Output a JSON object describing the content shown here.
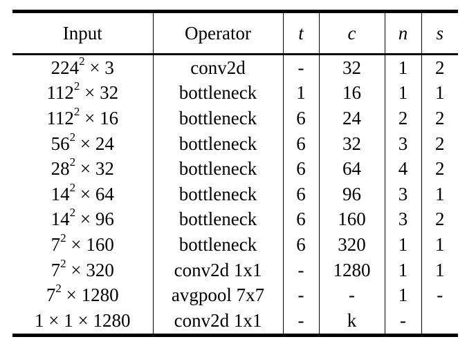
{
  "table": {
    "headers": {
      "input": "Input",
      "operator": "Operator",
      "t": "t",
      "c": "c",
      "n": "n",
      "s": "s"
    },
    "rows": [
      {
        "input_base": "224",
        "input_exp": "2",
        "input_rest": " × 3",
        "operator": "conv2d",
        "t": "-",
        "c": "32",
        "n": "1",
        "s": "2"
      },
      {
        "input_base": "112",
        "input_exp": "2",
        "input_rest": " × 32",
        "operator": "bottleneck",
        "t": "1",
        "c": "16",
        "n": "1",
        "s": "1"
      },
      {
        "input_base": "112",
        "input_exp": "2",
        "input_rest": " × 16",
        "operator": "bottleneck",
        "t": "6",
        "c": "24",
        "n": "2",
        "s": "2"
      },
      {
        "input_base": "56",
        "input_exp": "2",
        "input_rest": " × 24",
        "operator": "bottleneck",
        "t": "6",
        "c": "32",
        "n": "3",
        "s": "2"
      },
      {
        "input_base": "28",
        "input_exp": "2",
        "input_rest": " × 32",
        "operator": "bottleneck",
        "t": "6",
        "c": "64",
        "n": "4",
        "s": "2"
      },
      {
        "input_base": "14",
        "input_exp": "2",
        "input_rest": " × 64",
        "operator": "bottleneck",
        "t": "6",
        "c": "96",
        "n": "3",
        "s": "1"
      },
      {
        "input_base": "14",
        "input_exp": "2",
        "input_rest": " × 96",
        "operator": "bottleneck",
        "t": "6",
        "c": "160",
        "n": "3",
        "s": "2"
      },
      {
        "input_base": "7",
        "input_exp": "2",
        "input_rest": " × 160",
        "operator": "bottleneck",
        "t": "6",
        "c": "320",
        "n": "1",
        "s": "1"
      },
      {
        "input_base": "7",
        "input_exp": "2",
        "input_rest": " × 320",
        "operator": "conv2d 1x1",
        "t": "-",
        "c": "1280",
        "n": "1",
        "s": "1"
      },
      {
        "input_base": "7",
        "input_exp": "2",
        "input_rest": " × 1280",
        "operator": "avgpool 7x7",
        "t": "-",
        "c": "-",
        "n": "1",
        "s": "-"
      },
      {
        "input_base": "1 × 1 × 1280",
        "input_exp": "",
        "input_rest": "",
        "operator": "conv2d 1x1",
        "t": "-",
        "c": "k",
        "n": "-",
        "s": ""
      }
    ]
  }
}
